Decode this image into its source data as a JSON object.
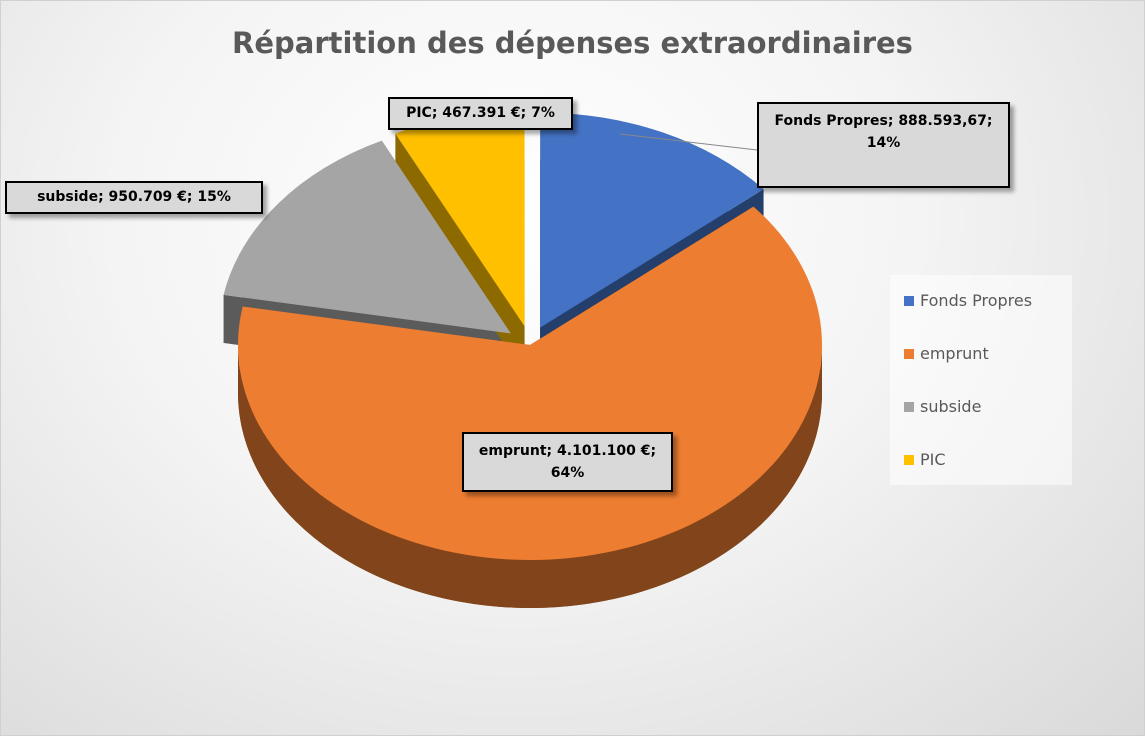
{
  "chart_data": {
    "type": "pie",
    "title": "Répartition des dépenses extraordinaires",
    "categories": [
      "Fonds Propres",
      "emprunt",
      "subside",
      "PIC"
    ],
    "values": [
      888593.67,
      4101100,
      950709,
      467391
    ],
    "value_labels": [
      "Fonds Propres; 888.593,67; 14%",
      "emprunt; 4.101.100 €; 64%",
      "subside; 950.709 €; 15%",
      "PIC; 467.391 €; 7%"
    ],
    "colors": [
      "#4472c4",
      "#ed7d31",
      "#a5a5a5",
      "#ffc000"
    ],
    "legend": "right"
  }
}
